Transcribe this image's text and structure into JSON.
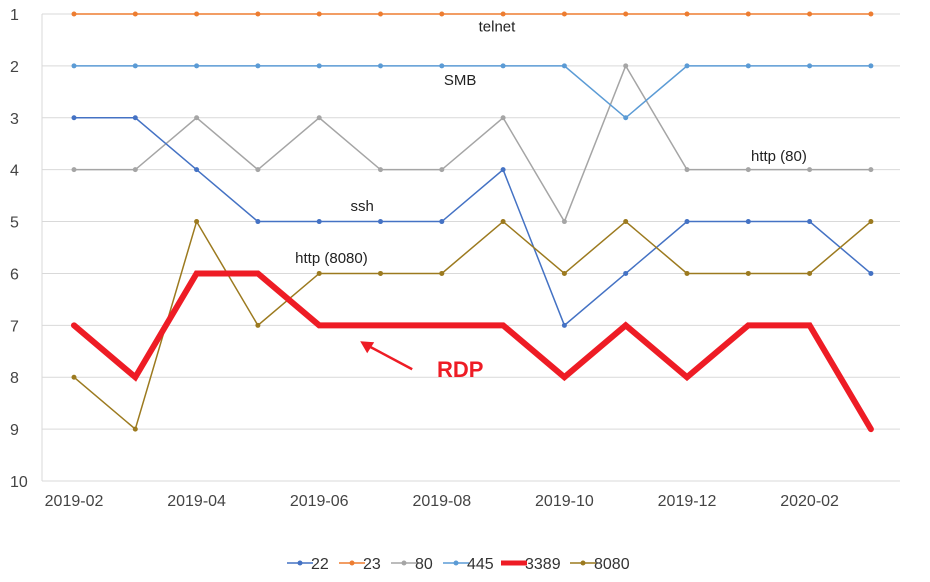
{
  "chart_data": {
    "type": "line",
    "title": "",
    "xlabel": "",
    "ylabel": "",
    "y_reversed": true,
    "ylim": [
      1,
      10
    ],
    "yticks": [
      "1",
      "2",
      "3",
      "4",
      "5",
      "6",
      "7",
      "8",
      "9",
      "10"
    ],
    "x": [
      "2019-02",
      "2019-03",
      "2019-04",
      "2019-05",
      "2019-06",
      "2019-07",
      "2019-08",
      "2019-09",
      "2019-10",
      "2019-11",
      "2019-12",
      "2020-01",
      "2020-02",
      "2020-03"
    ],
    "xtick_labels": [
      "2019-02",
      "2019-04",
      "2019-06",
      "2019-08",
      "2019-10",
      "2019-12",
      "2020-02"
    ],
    "grid": "horizontal",
    "legend_position": "bottom",
    "series": [
      {
        "name": "22",
        "color": "#4472c4",
        "width": 1.5,
        "values": [
          3,
          3,
          4,
          5,
          5,
          5,
          5,
          4,
          7,
          6,
          5,
          5,
          5,
          6
        ]
      },
      {
        "name": "23",
        "color": "#ed7d31",
        "width": 1.5,
        "values": [
          1,
          1,
          1,
          1,
          1,
          1,
          1,
          1,
          1,
          1,
          1,
          1,
          1,
          1
        ]
      },
      {
        "name": "80",
        "color": "#a5a5a5",
        "width": 1.5,
        "values": [
          4,
          4,
          3,
          4,
          3,
          4,
          4,
          3,
          5,
          2,
          4,
          4,
          4,
          4
        ]
      },
      {
        "name": "445",
        "color": "#5b9bd5",
        "width": 1.5,
        "values": [
          2,
          2,
          2,
          2,
          2,
          2,
          2,
          2,
          2,
          3,
          2,
          2,
          2,
          2
        ]
      },
      {
        "name": "3389",
        "color": "#ee1c25",
        "width": 6,
        "values": [
          7,
          8,
          6,
          6,
          7,
          7,
          7,
          7,
          8,
          7,
          8,
          7,
          7,
          9
        ]
      },
      {
        "name": "8080",
        "color": "#9c7a1f",
        "width": 1.5,
        "values": [
          8,
          9,
          5,
          7,
          6,
          6,
          6,
          5,
          6,
          5,
          6,
          6,
          6,
          5
        ]
      }
    ],
    "annotations": [
      {
        "text": "telnet",
        "x_index": 6.9,
        "y": 1.34,
        "style": "normal"
      },
      {
        "text": "SMB",
        "x_index": 6.3,
        "y": 2.37,
        "style": "normal"
      },
      {
        "text": "http (80)",
        "x_index": 11.5,
        "y": 3.83,
        "style": "normal"
      },
      {
        "text": "ssh",
        "x_index": 4.7,
        "y": 4.8,
        "style": "normal"
      },
      {
        "text": "http (8080)",
        "x_index": 4.2,
        "y": 5.8,
        "style": "normal"
      },
      {
        "text": "RDP",
        "x_index": 6.3,
        "y": 8.0,
        "style": "rdp"
      }
    ]
  }
}
